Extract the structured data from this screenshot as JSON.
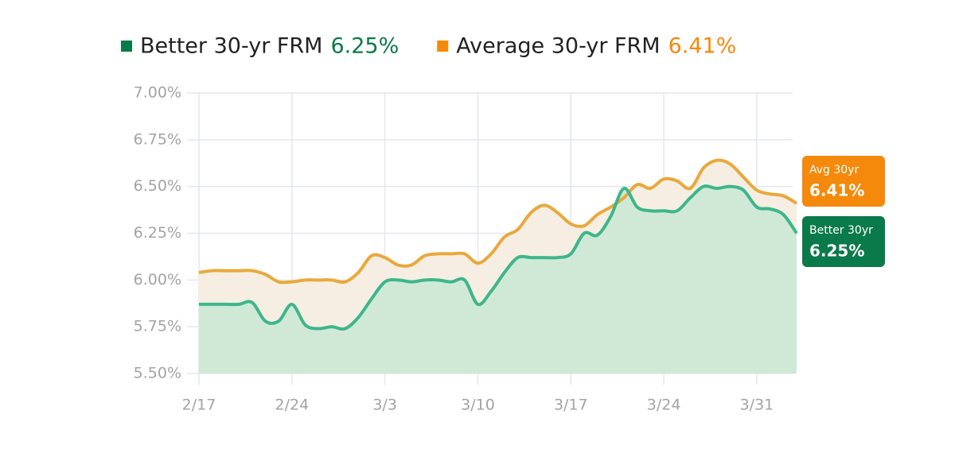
{
  "chart_data": {
    "type": "line",
    "categories": [
      "2/17",
      null,
      null,
      null,
      null,
      null,
      null,
      "2/24",
      null,
      null,
      null,
      null,
      null,
      null,
      "3/3",
      null,
      null,
      null,
      null,
      null,
      null,
      "3/10",
      null,
      null,
      null,
      null,
      null,
      null,
      "3/17",
      null,
      null,
      null,
      null,
      null,
      null,
      "3/24",
      null,
      null,
      null,
      null,
      null,
      null,
      "3/31",
      null,
      null,
      null
    ],
    "series": [
      {
        "name": "Better 30-yr FRM",
        "current_label": "6.25%",
        "tag_label": "Better 30yr",
        "color": "#3db68b",
        "fill": "#d0e9d7",
        "badge_color": "#0b7a4a",
        "values": [
          5.87,
          5.87,
          5.87,
          5.87,
          5.88,
          5.78,
          5.78,
          5.87,
          5.76,
          5.74,
          5.75,
          5.74,
          5.8,
          5.9,
          5.99,
          6.0,
          5.99,
          6.0,
          6.0,
          5.99,
          6.0,
          5.87,
          5.94,
          6.04,
          6.12,
          6.12,
          6.12,
          6.12,
          6.14,
          6.25,
          6.24,
          6.34,
          6.49,
          6.39,
          6.37,
          6.37,
          6.37,
          6.44,
          6.5,
          6.49,
          6.5,
          6.48,
          6.39,
          6.38,
          6.35,
          6.25
        ]
      },
      {
        "name": "Average 30-yr FRM",
        "current_label": "6.41%",
        "tag_label": "Avg 30yr",
        "color": "#e8a93c",
        "fill": "#f6eee2",
        "badge_color": "#f4890b",
        "values": [
          6.04,
          6.05,
          6.05,
          6.05,
          6.05,
          6.03,
          5.99,
          5.99,
          6.0,
          6.0,
          6.0,
          5.99,
          6.04,
          6.13,
          6.12,
          6.08,
          6.08,
          6.13,
          6.14,
          6.14,
          6.14,
          6.09,
          6.14,
          6.23,
          6.27,
          6.36,
          6.4,
          6.36,
          6.3,
          6.29,
          6.35,
          6.39,
          6.44,
          6.51,
          6.49,
          6.54,
          6.53,
          6.49,
          6.6,
          6.64,
          6.62,
          6.55,
          6.48,
          6.46,
          6.45,
          6.41
        ]
      }
    ],
    "ylim": [
      5.5,
      7.0
    ],
    "yticks": [
      {
        "value": 5.5,
        "label": "5.50%"
      },
      {
        "value": 5.75,
        "label": "5.75%"
      },
      {
        "value": 6.0,
        "label": "6.00%"
      },
      {
        "value": 6.25,
        "label": "6.25%"
      },
      {
        "value": 6.5,
        "label": "6.50%"
      },
      {
        "value": 6.75,
        "label": "6.75%"
      },
      {
        "value": 7.0,
        "label": "7.00%"
      }
    ],
    "grid": true
  }
}
